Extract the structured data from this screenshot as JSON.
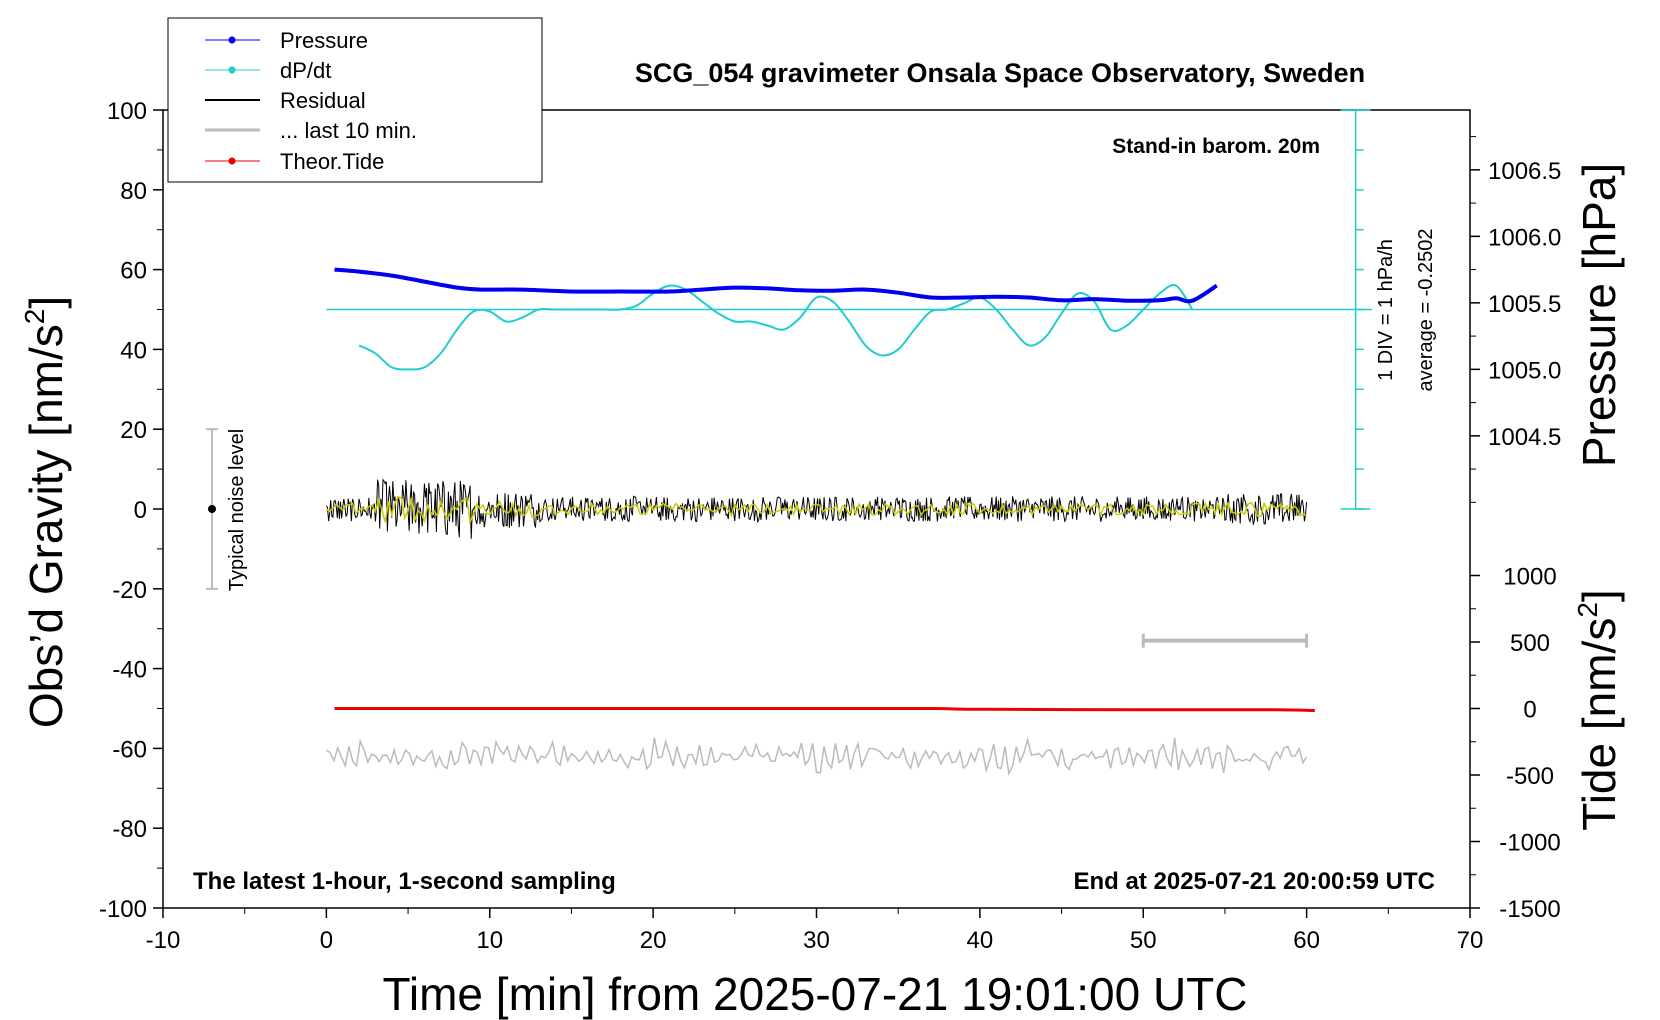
{
  "chart_data": {
    "type": "line",
    "title": "SCG_054 gravimeter Onsala Space Observatory, Sweden",
    "xlabel": "Time [min] from 2025-07-21 19:01:00 UTC",
    "ylabel_left_main": "Obs’d Gravity [nm/s",
    "ylabel_left_sup": "2",
    "ylabel_left_end": "]",
    "ylabel_right_pressure": "Pressure [hPa]",
    "ylabel_right_tide_main": "Tide [nm/s",
    "ylabel_right_tide_sup": "2",
    "ylabel_right_tide_end": "]",
    "xlim": [
      -10,
      70
    ],
    "ylim": [
      -100,
      100
    ],
    "x_ticks": [
      -10,
      0,
      10,
      20,
      30,
      40,
      50,
      60,
      70
    ],
    "y_ticks": [
      100,
      80,
      60,
      40,
      20,
      0,
      -20,
      -40,
      -60,
      -80,
      -100
    ],
    "pressure_ticks": [
      "1006.5",
      "1006.0",
      "1005.5",
      "1005.0",
      "1004.5"
    ],
    "tide_ticks": [
      "1000",
      "500",
      "0",
      "-500",
      "-1000",
      "-1500"
    ],
    "annotations": {
      "barometer": "Stand-in barom. 20m",
      "div_label": "1 DIV = 1 hPa/h",
      "average_label": "average = -0.2502",
      "noise_label": "Typical noise level",
      "bottom_left": "The latest 1-hour, 1-second sampling",
      "bottom_right": "End at 2025-07-21 20:00:59 UTC"
    },
    "legend": {
      "position": "top-left",
      "entries": [
        "Pressure",
        "dP/dt",
        "Residual",
        "... last 10 min.",
        "Theor.Tide"
      ]
    },
    "colors": {
      "pressure": "#0000ee",
      "dpdt": "#22cccc",
      "residual": "#000000",
      "residual_smooth": "#cccc00",
      "last10": "#bbbbbb",
      "tide": "#ee0000",
      "noise_bar": "#bbbbbb"
    },
    "series": [
      {
        "name": "Pressure",
        "x": [
          0.5,
          2,
          4,
          6,
          8,
          9.5,
          12,
          15,
          18,
          21,
          23,
          25,
          27,
          29,
          31,
          33,
          35,
          37,
          39,
          41,
          43,
          45,
          47,
          49,
          51,
          52,
          53,
          54.5
        ],
        "y": [
          60,
          59.5,
          58.5,
          57,
          55.5,
          55,
          55,
          54.5,
          54.5,
          54.5,
          55,
          55.5,
          55.3,
          54.8,
          54.7,
          55,
          54.2,
          53,
          53,
          53.2,
          53,
          52.3,
          52.6,
          52.2,
          52.3,
          52.8,
          52.2,
          56
        ]
      },
      {
        "name": "dP/dt",
        "x": [
          2,
          3,
          4,
          5,
          6,
          7,
          8,
          9,
          10,
          11,
          12,
          13,
          14,
          15,
          16,
          17,
          18,
          19,
          20,
          21,
          22,
          23,
          24,
          25,
          26,
          27,
          28,
          29,
          30,
          31,
          32,
          33,
          34,
          35,
          36,
          37,
          38,
          39,
          40,
          41,
          42,
          43,
          44,
          45,
          46,
          47,
          48,
          49,
          50,
          51,
          52,
          53
        ],
        "y": [
          41,
          39,
          35.5,
          35,
          35.5,
          39,
          45,
          49.5,
          49.5,
          47,
          48,
          50,
          50,
          50,
          50,
          50,
          50,
          51,
          54,
          56,
          55,
          52,
          49,
          47,
          47,
          46,
          45,
          48,
          53,
          52,
          47,
          41,
          38.5,
          40,
          45,
          49.5,
          50,
          51.5,
          53,
          50,
          45,
          41,
          43,
          49,
          54,
          52,
          45,
          46,
          50,
          54,
          56,
          50
        ]
      },
      {
        "name": "Theor.Tide",
        "x": [
          0.5,
          10,
          20,
          30,
          37,
          40,
          50,
          58,
          60.5
        ],
        "y": [
          -50,
          -50,
          -50,
          -50,
          -50,
          -50.2,
          -50.3,
          -50.3,
          -50.5
        ]
      },
      {
        "name": "Residual",
        "x_range": [
          0,
          60
        ],
        "y_approx_range": [
          -9,
          11
        ],
        "center": 0
      },
      {
        "name": "... last 10 min.",
        "x_range": [
          50,
          60
        ],
        "displayed_band_center_y": -62
      }
    ],
    "noise_bar": {
      "x": -7,
      "y_center": 0,
      "y_low": -20,
      "y_high": 20
    },
    "last10_marker": {
      "x_range": [
        50,
        60
      ],
      "y": -33
    },
    "dpdt_baseline_y": 50,
    "div_axis_x": 63
  }
}
